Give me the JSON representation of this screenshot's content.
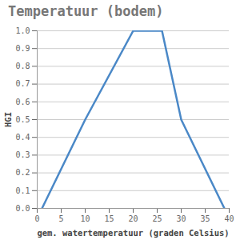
{
  "chart_data": {
    "type": "line",
    "title": "Temperatuur (bodem)",
    "x_label": "gem. watertemperatuur (graden Celsius)",
    "y_label": "HGI",
    "x": [
      1,
      10,
      20,
      26,
      30,
      39
    ],
    "values": [
      0,
      0.5,
      1,
      1,
      0.5,
      0
    ],
    "color": "#4a88c7",
    "xlim": [
      0,
      40
    ],
    "xticks": [
      0,
      5,
      10,
      15,
      20,
      25,
      30,
      35,
      40
    ],
    "ylim": [
      0,
      1
    ],
    "yticks": [
      {
        "value": 0,
        "label": "0.0"
      },
      0.1,
      0.2,
      0.3,
      0.4,
      0.5,
      0.6,
      0.7,
      0.8,
      0.9,
      {
        "value": 1,
        "label": "1.0"
      }
    ],
    "grid": true
  }
}
